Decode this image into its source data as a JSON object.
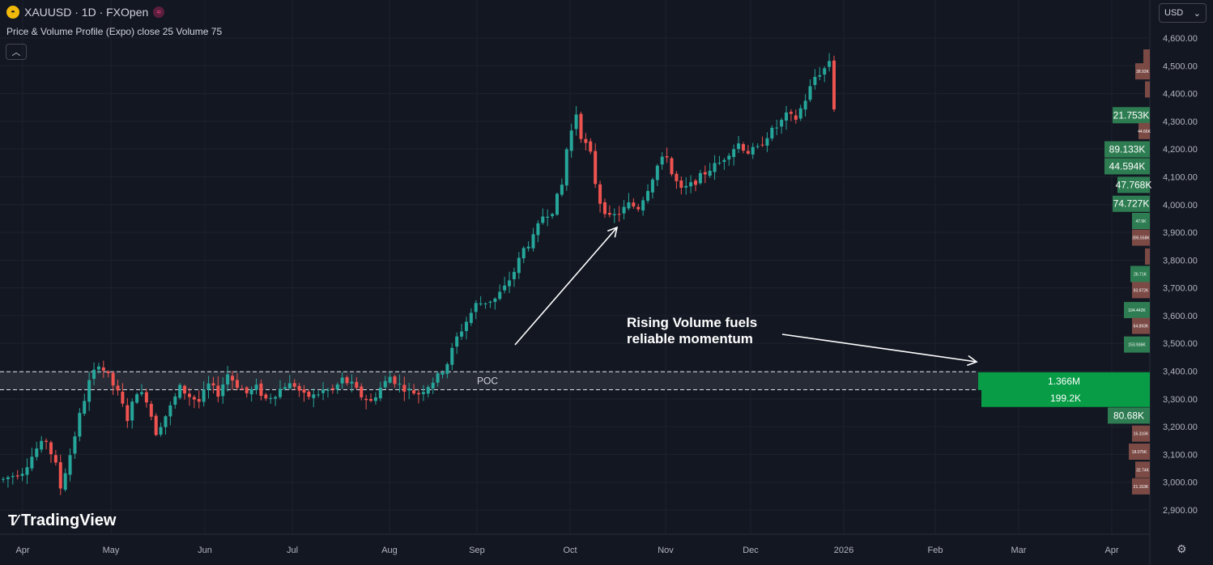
{
  "header": {
    "symbol_line": "XAUUSD · 1D · FXOpen",
    "indicator": "Price & Volume Profile (Expo) close 25 Volume 75",
    "currency": "USD",
    "logo_text": "TradingView"
  },
  "annotation": {
    "line1": "Rising Volume fuels",
    "line2": "reliable momentum"
  },
  "icons": {
    "symbol": "gold-coin-icon",
    "exchange": "fxopen-icon",
    "collapse": "chevron-up-icon",
    "currency_dropdown": "chevron-down-icon",
    "settings": "gear-icon"
  },
  "colors": {
    "up": "#26a69a",
    "down": "#ef5350",
    "bg": "#131722",
    "profile_up": "#2e7d52",
    "profile_down": "#7b4a45",
    "poc_zone": "#2a2e39"
  },
  "chart_data": {
    "type": "candlestick",
    "y_axis": {
      "min": 2860,
      "max": 4660,
      "ticks": [
        "2,900.00",
        "3,000.00",
        "3,100.00",
        "3,200.00",
        "3,300.00",
        "3,400.00",
        "3,500.00",
        "3,600.00",
        "3,700.00",
        "3,800.00",
        "3,900.00",
        "4,000.00",
        "4,100.00",
        "4,200.00",
        "4,300.00",
        "4,400.00",
        "4,500.00",
        "4,600.00"
      ]
    },
    "x_axis": {
      "labels": [
        "Apr",
        "May",
        "Jun",
        "Jul",
        "Aug",
        "Sep",
        "Oct",
        "Nov",
        "Dec",
        "2026",
        "Feb",
        "Mar",
        "Apr"
      ]
    },
    "poc": {
      "label": "POC",
      "upper": 3398,
      "lower": 3333
    },
    "price_path": [
      [
        0,
        3010
      ],
      [
        4,
        3040
      ],
      [
        7,
        3120
      ],
      [
        9,
        3150
      ],
      [
        11,
        3060
      ],
      [
        12,
        2980
      ],
      [
        14,
        3100
      ],
      [
        16,
        3240
      ],
      [
        18,
        3360
      ],
      [
        20,
        3430
      ],
      [
        22,
        3380
      ],
      [
        24,
        3320
      ],
      [
        26,
        3230
      ],
      [
        28,
        3330
      ],
      [
        30,
        3300
      ],
      [
        32,
        3180
      ],
      [
        33,
        3210
      ],
      [
        35,
        3270
      ],
      [
        37,
        3340
      ],
      [
        39,
        3310
      ],
      [
        41,
        3290
      ],
      [
        43,
        3350
      ],
      [
        45,
        3320
      ],
      [
        47,
        3390
      ],
      [
        49,
        3350
      ],
      [
        51,
        3320
      ],
      [
        53,
        3340
      ],
      [
        55,
        3300
      ],
      [
        57,
        3320
      ],
      [
        59,
        3350
      ],
      [
        61,
        3350
      ],
      [
        63,
        3310
      ],
      [
        65,
        3310
      ],
      [
        67,
        3330
      ],
      [
        69,
        3330
      ],
      [
        71,
        3370
      ],
      [
        73,
        3350
      ],
      [
        75,
        3310
      ],
      [
        77,
        3290
      ],
      [
        79,
        3340
      ],
      [
        81,
        3380
      ],
      [
        83,
        3350
      ],
      [
        85,
        3330
      ],
      [
        87,
        3320
      ],
      [
        89,
        3350
      ],
      [
        91,
        3380
      ],
      [
        93,
        3430
      ],
      [
        95,
        3520
      ],
      [
        97,
        3580
      ],
      [
        99,
        3640
      ],
      [
        101,
        3650
      ],
      [
        103,
        3660
      ],
      [
        105,
        3700
      ],
      [
        107,
        3760
      ],
      [
        109,
        3840
      ],
      [
        111,
        3880
      ],
      [
        113,
        3960
      ],
      [
        115,
        3980
      ],
      [
        117,
        4070
      ],
      [
        118,
        4200
      ],
      [
        120,
        4330
      ],
      [
        121,
        4250
      ],
      [
        123,
        4180
      ],
      [
        124,
        4080
      ],
      [
        125,
        4010
      ],
      [
        127,
        3950
      ],
      [
        129,
        3970
      ],
      [
        131,
        4000
      ],
      [
        133,
        3990
      ],
      [
        135,
        4060
      ],
      [
        137,
        4140
      ],
      [
        139,
        4180
      ],
      [
        140,
        4110
      ],
      [
        142,
        4050
      ],
      [
        144,
        4070
      ],
      [
        146,
        4100
      ],
      [
        148,
        4130
      ],
      [
        150,
        4150
      ],
      [
        152,
        4190
      ],
      [
        154,
        4220
      ],
      [
        156,
        4190
      ],
      [
        158,
        4200
      ],
      [
        160,
        4250
      ],
      [
        162,
        4280
      ],
      [
        164,
        4320
      ],
      [
        166,
        4310
      ],
      [
        168,
        4380
      ],
      [
        170,
        4460
      ],
      [
        172,
        4490
      ],
      [
        173,
        4520
      ],
      [
        174,
        4350
      ]
    ],
    "volume_profile": [
      {
        "price": 4530,
        "label": "",
        "width": 8,
        "type": "down"
      },
      {
        "price": 4480,
        "label": "38.93K",
        "width": 18,
        "type": "down"
      },
      {
        "price": 4415,
        "label": "",
        "width": 6,
        "type": "down"
      },
      {
        "price": 4322,
        "label": "21.753K",
        "width": 46,
        "type": "up"
      },
      {
        "price": 4265,
        "label": "44.66K",
        "width": 14,
        "type": "down"
      },
      {
        "price": 4199,
        "label": "89.133K",
        "width": 56,
        "type": "up"
      },
      {
        "price": 4138,
        "label": "44.594K",
        "width": 56,
        "type": "up"
      },
      {
        "price": 4071,
        "label": "47.768K",
        "width": 40,
        "type": "up"
      },
      {
        "price": 4003,
        "label": "74.727K",
        "width": 46,
        "type": "up"
      },
      {
        "price": 3941,
        "label": "47.5K",
        "width": 22,
        "type": "up"
      },
      {
        "price": 3881,
        "label": "395.558K",
        "width": 22,
        "type": "down"
      },
      {
        "price": 3813,
        "label": "",
        "width": 6,
        "type": "down"
      },
      {
        "price": 3750,
        "label": "26.71K",
        "width": 24,
        "type": "up"
      },
      {
        "price": 3692,
        "label": "93.972K",
        "width": 22,
        "type": "down"
      },
      {
        "price": 3620,
        "label": "104.442K",
        "width": 32,
        "type": "up"
      },
      {
        "price": 3563,
        "label": "64.893K",
        "width": 22,
        "type": "down"
      },
      {
        "price": 3496,
        "label": "153.936K",
        "width": 32,
        "type": "up"
      },
      {
        "price": 3364,
        "label": "1.366M",
        "width": 212,
        "type": "up"
      },
      {
        "price": 3303,
        "label": "199.2K",
        "width": 208,
        "type": "up"
      },
      {
        "price": 3240,
        "label": "80.68K",
        "width": 52,
        "type": "up"
      },
      {
        "price": 3175,
        "label": "16.316K",
        "width": 22,
        "type": "down"
      },
      {
        "price": 3110,
        "label": "18.075K",
        "width": 26,
        "type": "down"
      },
      {
        "price": 3045,
        "label": "32.74K",
        "width": 18,
        "type": "down"
      },
      {
        "price": 2985,
        "label": "21.153K",
        "width": 22,
        "type": "down"
      }
    ]
  }
}
